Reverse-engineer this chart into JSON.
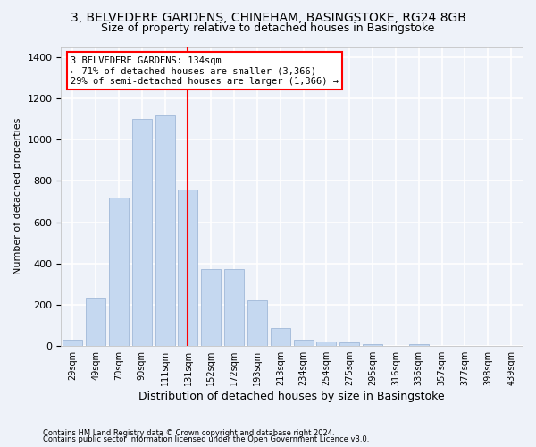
{
  "title_line1": "3, BELVEDERE GARDENS, CHINEHAM, BASINGSTOKE, RG24 8GB",
  "title_line2": "Size of property relative to detached houses in Basingstoke",
  "xlabel": "Distribution of detached houses by size in Basingstoke",
  "ylabel": "Number of detached properties",
  "categories": [
    "29sqm",
    "49sqm",
    "70sqm",
    "90sqm",
    "111sqm",
    "131sqm",
    "152sqm",
    "172sqm",
    "193sqm",
    "213sqm",
    "234sqm",
    "254sqm",
    "275sqm",
    "295sqm",
    "316sqm",
    "336sqm",
    "357sqm",
    "377sqm",
    "398sqm",
    "439sqm"
  ],
  "values": [
    30,
    235,
    720,
    1100,
    1120,
    760,
    375,
    375,
    220,
    85,
    30,
    20,
    18,
    10,
    0,
    10,
    0,
    0,
    0,
    0
  ],
  "bar_color": "#c5d8f0",
  "bar_edge_color": "#a0b8d8",
  "red_line_index": 5,
  "annotation_line1": "3 BELVEDERE GARDENS: 134sqm",
  "annotation_line2": "← 71% of detached houses are smaller (3,366)",
  "annotation_line3": "29% of semi-detached houses are larger (1,366) →",
  "annotation_box_facecolor": "white",
  "annotation_box_edgecolor": "red",
  "ylim": [
    0,
    1450
  ],
  "yticks": [
    0,
    200,
    400,
    600,
    800,
    1000,
    1200,
    1400
  ],
  "footnote1": "Contains HM Land Registry data © Crown copyright and database right 2024.",
  "footnote2": "Contains public sector information licensed under the Open Government Licence v3.0.",
  "bg_color": "#eef2f9",
  "grid_color": "#ffffff",
  "title1_fontsize": 10,
  "title2_fontsize": 9,
  "bar_fontsize": 7,
  "ylabel_fontsize": 8,
  "xlabel_fontsize": 9,
  "annotation_fontsize": 7.5,
  "footnote_fontsize": 6
}
